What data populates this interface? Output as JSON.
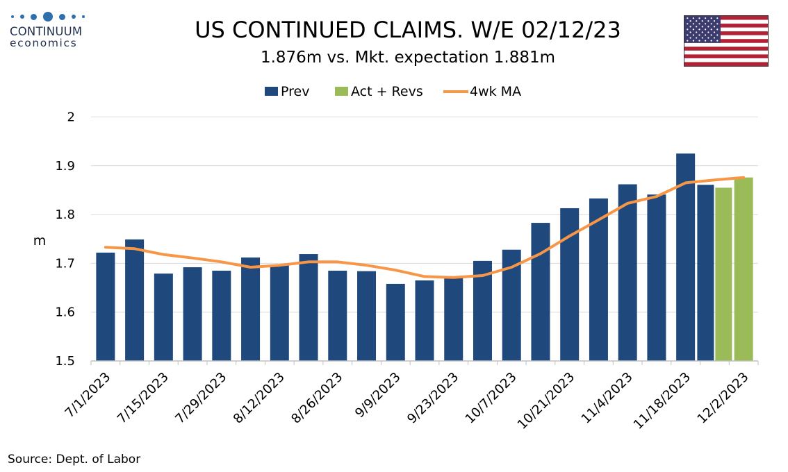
{
  "logo": {
    "name": "CONTINUUM",
    "sub": "economics"
  },
  "title": "US CONTINUED CLAIMS. W/E 02/12/23",
  "subtitle": "1.876m vs. Mkt. expectation 1.881m",
  "source": "Source: Dept. of Labor",
  "colors": {
    "prev": "#1f497d",
    "act": "#9bbb59",
    "ma": "#f79646",
    "flag_red": "#b22234",
    "flag_blue": "#3c3b6e"
  },
  "chart_data": {
    "type": "bar",
    "ylabel": "m",
    "ylim": [
      1.5,
      2.0
    ],
    "yticks": [
      "1.5",
      "1.6",
      "1.7",
      "1.8",
      "1.9",
      "2"
    ],
    "legend": [
      "Prev",
      "Act + Revs",
      "4wk MA"
    ],
    "legend_position": "top",
    "grid": true,
    "x_tick_labels": [
      "7/1/2023",
      "7/15/2023",
      "7/29/2023",
      "8/12/2023",
      "8/26/2023",
      "9/9/2023",
      "9/23/2023",
      "10/7/2023",
      "10/21/2023",
      "11/4/2023",
      "11/18/2023",
      "12/2/2023"
    ],
    "categories": [
      "7/1/2023",
      "7/8/2023",
      "7/15/2023",
      "7/22/2023",
      "7/29/2023",
      "8/5/2023",
      "8/12/2023",
      "8/19/2023",
      "8/26/2023",
      "9/2/2023",
      "9/9/2023",
      "9/16/2023",
      "9/23/2023",
      "9/30/2023",
      "10/7/2023",
      "10/14/2023",
      "10/21/2023",
      "10/28/2023",
      "11/4/2023",
      "11/11/2023",
      "11/18/2023",
      "11/25/2023",
      "12/2/2023"
    ],
    "series": [
      {
        "name": "Prev",
        "type": "bar",
        "values": [
          1.722,
          1.749,
          1.679,
          1.692,
          1.685,
          1.712,
          1.697,
          1.719,
          1.685,
          1.684,
          1.658,
          1.665,
          1.67,
          1.705,
          1.728,
          1.783,
          1.813,
          1.833,
          1.862,
          1.841,
          1.925,
          1.861,
          null
        ]
      },
      {
        "name": "Act + Revs",
        "type": "bar",
        "values": [
          null,
          null,
          null,
          null,
          null,
          null,
          null,
          null,
          null,
          null,
          null,
          null,
          null,
          null,
          null,
          null,
          null,
          null,
          null,
          null,
          null,
          1.855,
          1.876
        ]
      },
      {
        "name": "4wk MA",
        "type": "line",
        "values": [
          1.733,
          1.73,
          1.718,
          1.711,
          1.703,
          1.692,
          1.696,
          1.703,
          1.703,
          1.696,
          1.686,
          1.673,
          1.671,
          1.675,
          1.692,
          1.72,
          1.756,
          1.789,
          1.823,
          1.837,
          1.865,
          1.871,
          1.876
        ]
      }
    ]
  }
}
